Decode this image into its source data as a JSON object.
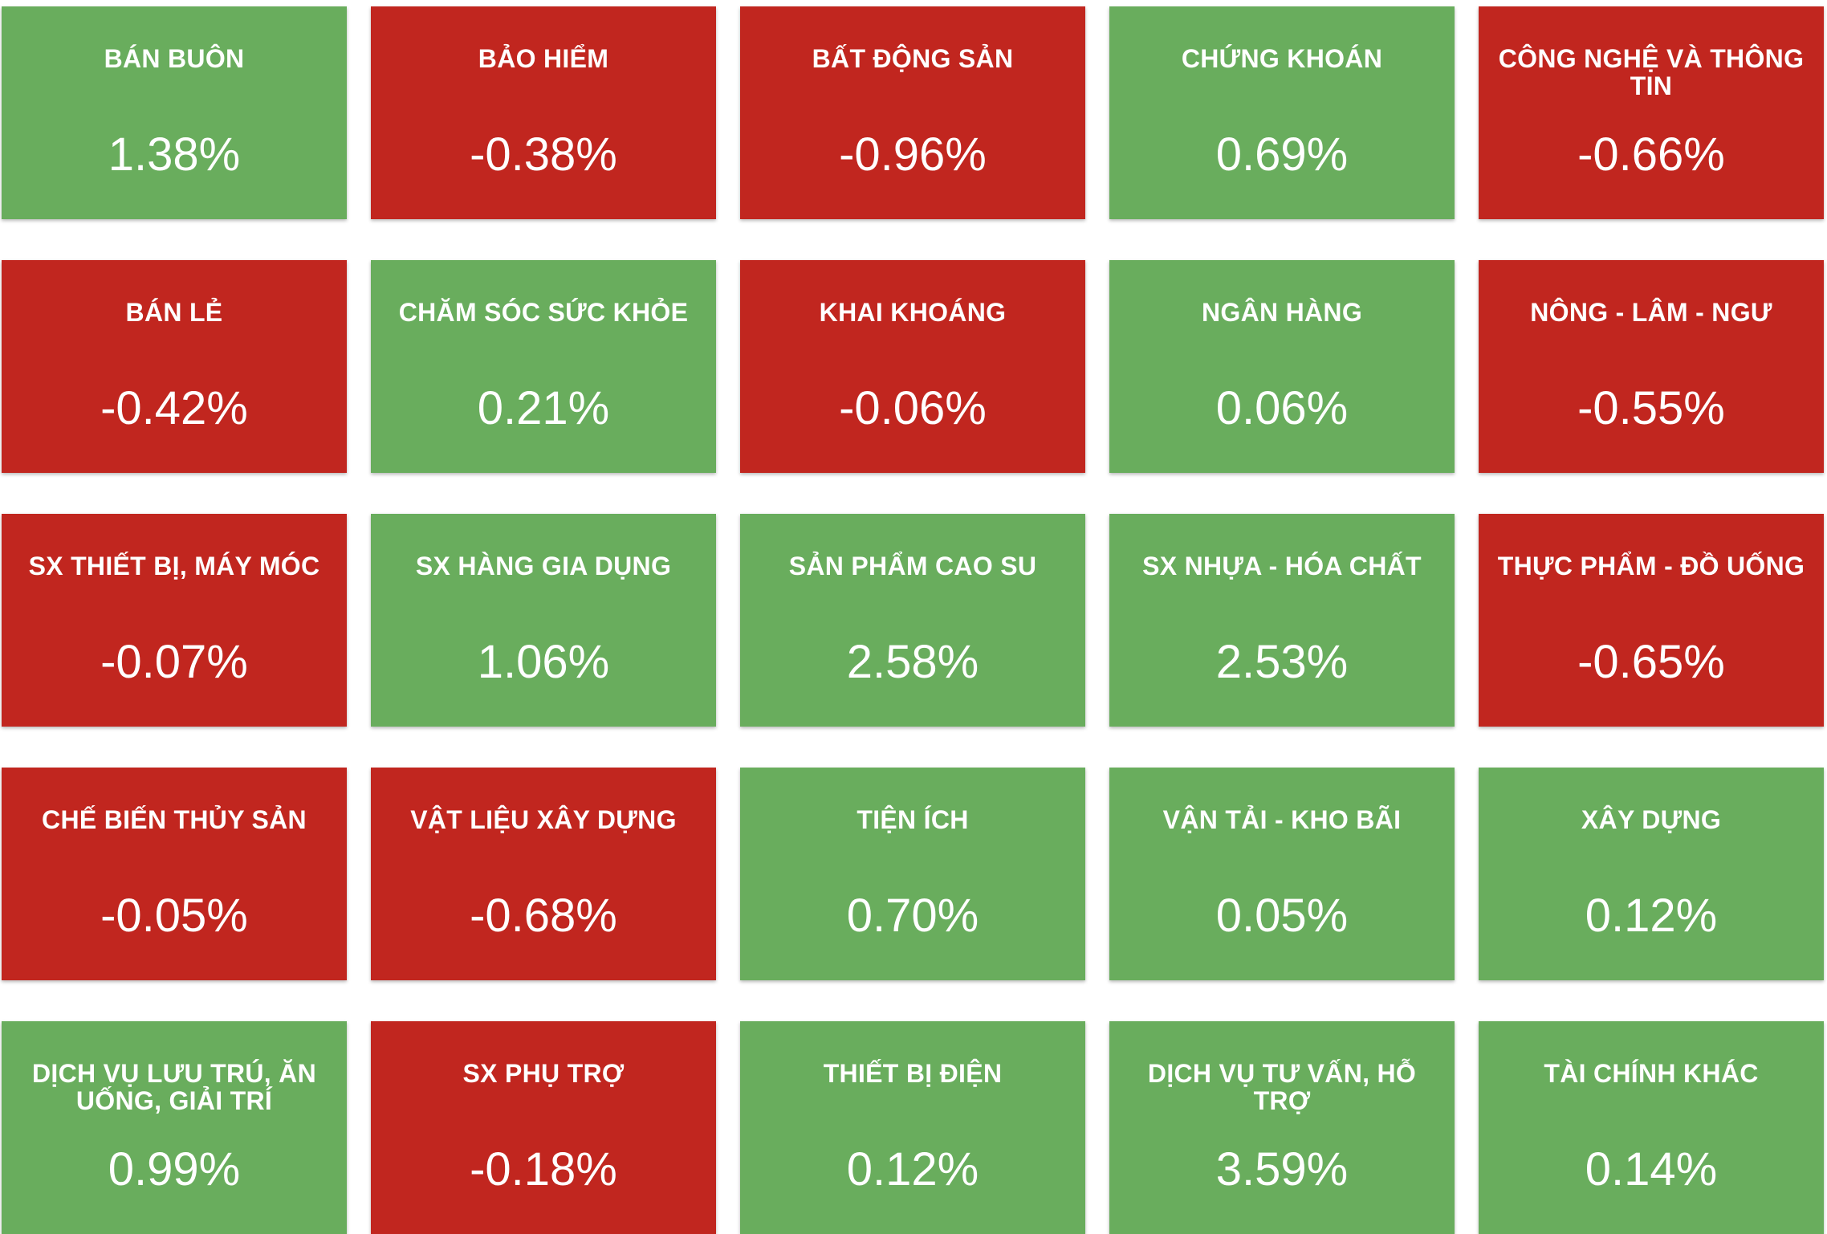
{
  "colors": {
    "up": "#69ad5d",
    "down": "#c1261f",
    "text": "#ffffff"
  },
  "sectors": [
    {
      "name": "BÁN BUÔN",
      "value": "1.38%",
      "direction": "up"
    },
    {
      "name": "BẢO HIỂM",
      "value": "-0.38%",
      "direction": "down"
    },
    {
      "name": "BẤT ĐỘNG SẢN",
      "value": "-0.96%",
      "direction": "down"
    },
    {
      "name": "CHỨNG KHOÁN",
      "value": "0.69%",
      "direction": "up"
    },
    {
      "name": "CÔNG NGHỆ VÀ THÔNG TIN",
      "value": "-0.66%",
      "direction": "down"
    },
    {
      "name": "BÁN LẺ",
      "value": "-0.42%",
      "direction": "down"
    },
    {
      "name": "CHĂM SÓC SỨC KHỎE",
      "value": "0.21%",
      "direction": "up"
    },
    {
      "name": "KHAI KHOÁNG",
      "value": "-0.06%",
      "direction": "down"
    },
    {
      "name": "NGÂN HÀNG",
      "value": "0.06%",
      "direction": "up"
    },
    {
      "name": "NÔNG - LÂM - NGƯ",
      "value": "-0.55%",
      "direction": "down"
    },
    {
      "name": "SX THIẾT BỊ, MÁY MÓC",
      "value": "-0.07%",
      "direction": "down"
    },
    {
      "name": "SX HÀNG GIA DỤNG",
      "value": "1.06%",
      "direction": "up"
    },
    {
      "name": "SẢN PHẨM CAO SU",
      "value": "2.58%",
      "direction": "up"
    },
    {
      "name": "SX NHỰA - HÓA CHẤT",
      "value": "2.53%",
      "direction": "up"
    },
    {
      "name": "THỰC PHẨM - ĐỒ UỐNG",
      "value": "-0.65%",
      "direction": "down"
    },
    {
      "name": "CHẾ BIẾN THỦY SẢN",
      "value": "-0.05%",
      "direction": "down"
    },
    {
      "name": "VẬT LIỆU XÂY DỰNG",
      "value": "-0.68%",
      "direction": "down"
    },
    {
      "name": "TIỆN ÍCH",
      "value": "0.70%",
      "direction": "up"
    },
    {
      "name": "VẬN TẢI - KHO BÃI",
      "value": "0.05%",
      "direction": "up"
    },
    {
      "name": "XÂY DỰNG",
      "value": "0.12%",
      "direction": "up"
    },
    {
      "name": "DỊCH VỤ LƯU TRÚ, ĂN UỐNG, GIẢI TRÍ",
      "value": "0.99%",
      "direction": "up"
    },
    {
      "name": "SX PHỤ TRỢ",
      "value": "-0.18%",
      "direction": "down"
    },
    {
      "name": "THIẾT BỊ ĐIỆN",
      "value": "0.12%",
      "direction": "up"
    },
    {
      "name": "DỊCH VỤ TƯ VẤN, HỖ TRỢ",
      "value": "3.59%",
      "direction": "up"
    },
    {
      "name": "TÀI CHÍNH KHÁC",
      "value": "0.14%",
      "direction": "up"
    }
  ]
}
